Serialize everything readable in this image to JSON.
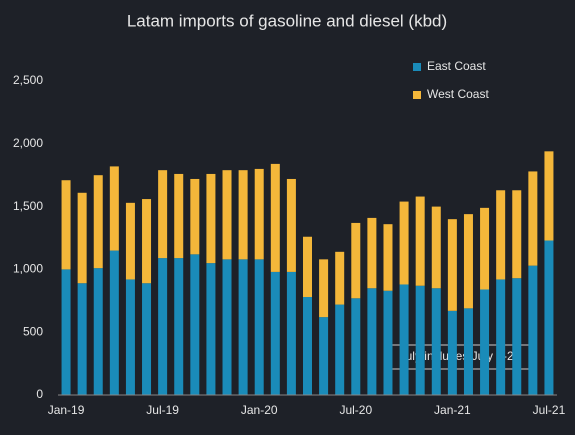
{
  "chart_data": {
    "type": "stacked_bar",
    "title": "Latam imports of gasoline and diesel (kbd)",
    "categories": [
      "Jan-19",
      null,
      null,
      null,
      null,
      null,
      "Jul-19",
      null,
      null,
      null,
      null,
      null,
      "Jan-20",
      null,
      null,
      null,
      null,
      null,
      "Jul-20",
      null,
      null,
      null,
      null,
      null,
      "Jan-21",
      null,
      null,
      null,
      null,
      null,
      "Jul-21"
    ],
    "series": [
      {
        "name": "East Coast",
        "color": "#1a8bb9",
        "values": [
          1000,
          890,
          1010,
          1150,
          920,
          890,
          1090,
          1090,
          1120,
          1050,
          1080,
          1080,
          1080,
          980,
          980,
          780,
          620,
          720,
          770,
          850,
          830,
          880,
          870,
          850,
          670,
          690,
          840,
          920,
          930,
          1030,
          1230
        ]
      },
      {
        "name": "West Coast",
        "color": "#f4b73a",
        "values": [
          710,
          720,
          740,
          670,
          610,
          670,
          700,
          670,
          600,
          710,
          710,
          710,
          720,
          860,
          740,
          480,
          460,
          420,
          600,
          560,
          530,
          660,
          710,
          650,
          730,
          750,
          650,
          710,
          700,
          750,
          710
        ]
      }
    ],
    "ylim": [
      0,
      2500
    ],
    "yticks": [
      0,
      500,
      {
        "value": 1000,
        "label": "1,000"
      },
      {
        "value": 1500,
        "label": "1,500"
      },
      {
        "value": 2000,
        "label": "2,000"
      },
      {
        "value": 2500,
        "label": "2,500"
      }
    ],
    "annotation": "July includes July 1-25",
    "legend": "top-right"
  }
}
